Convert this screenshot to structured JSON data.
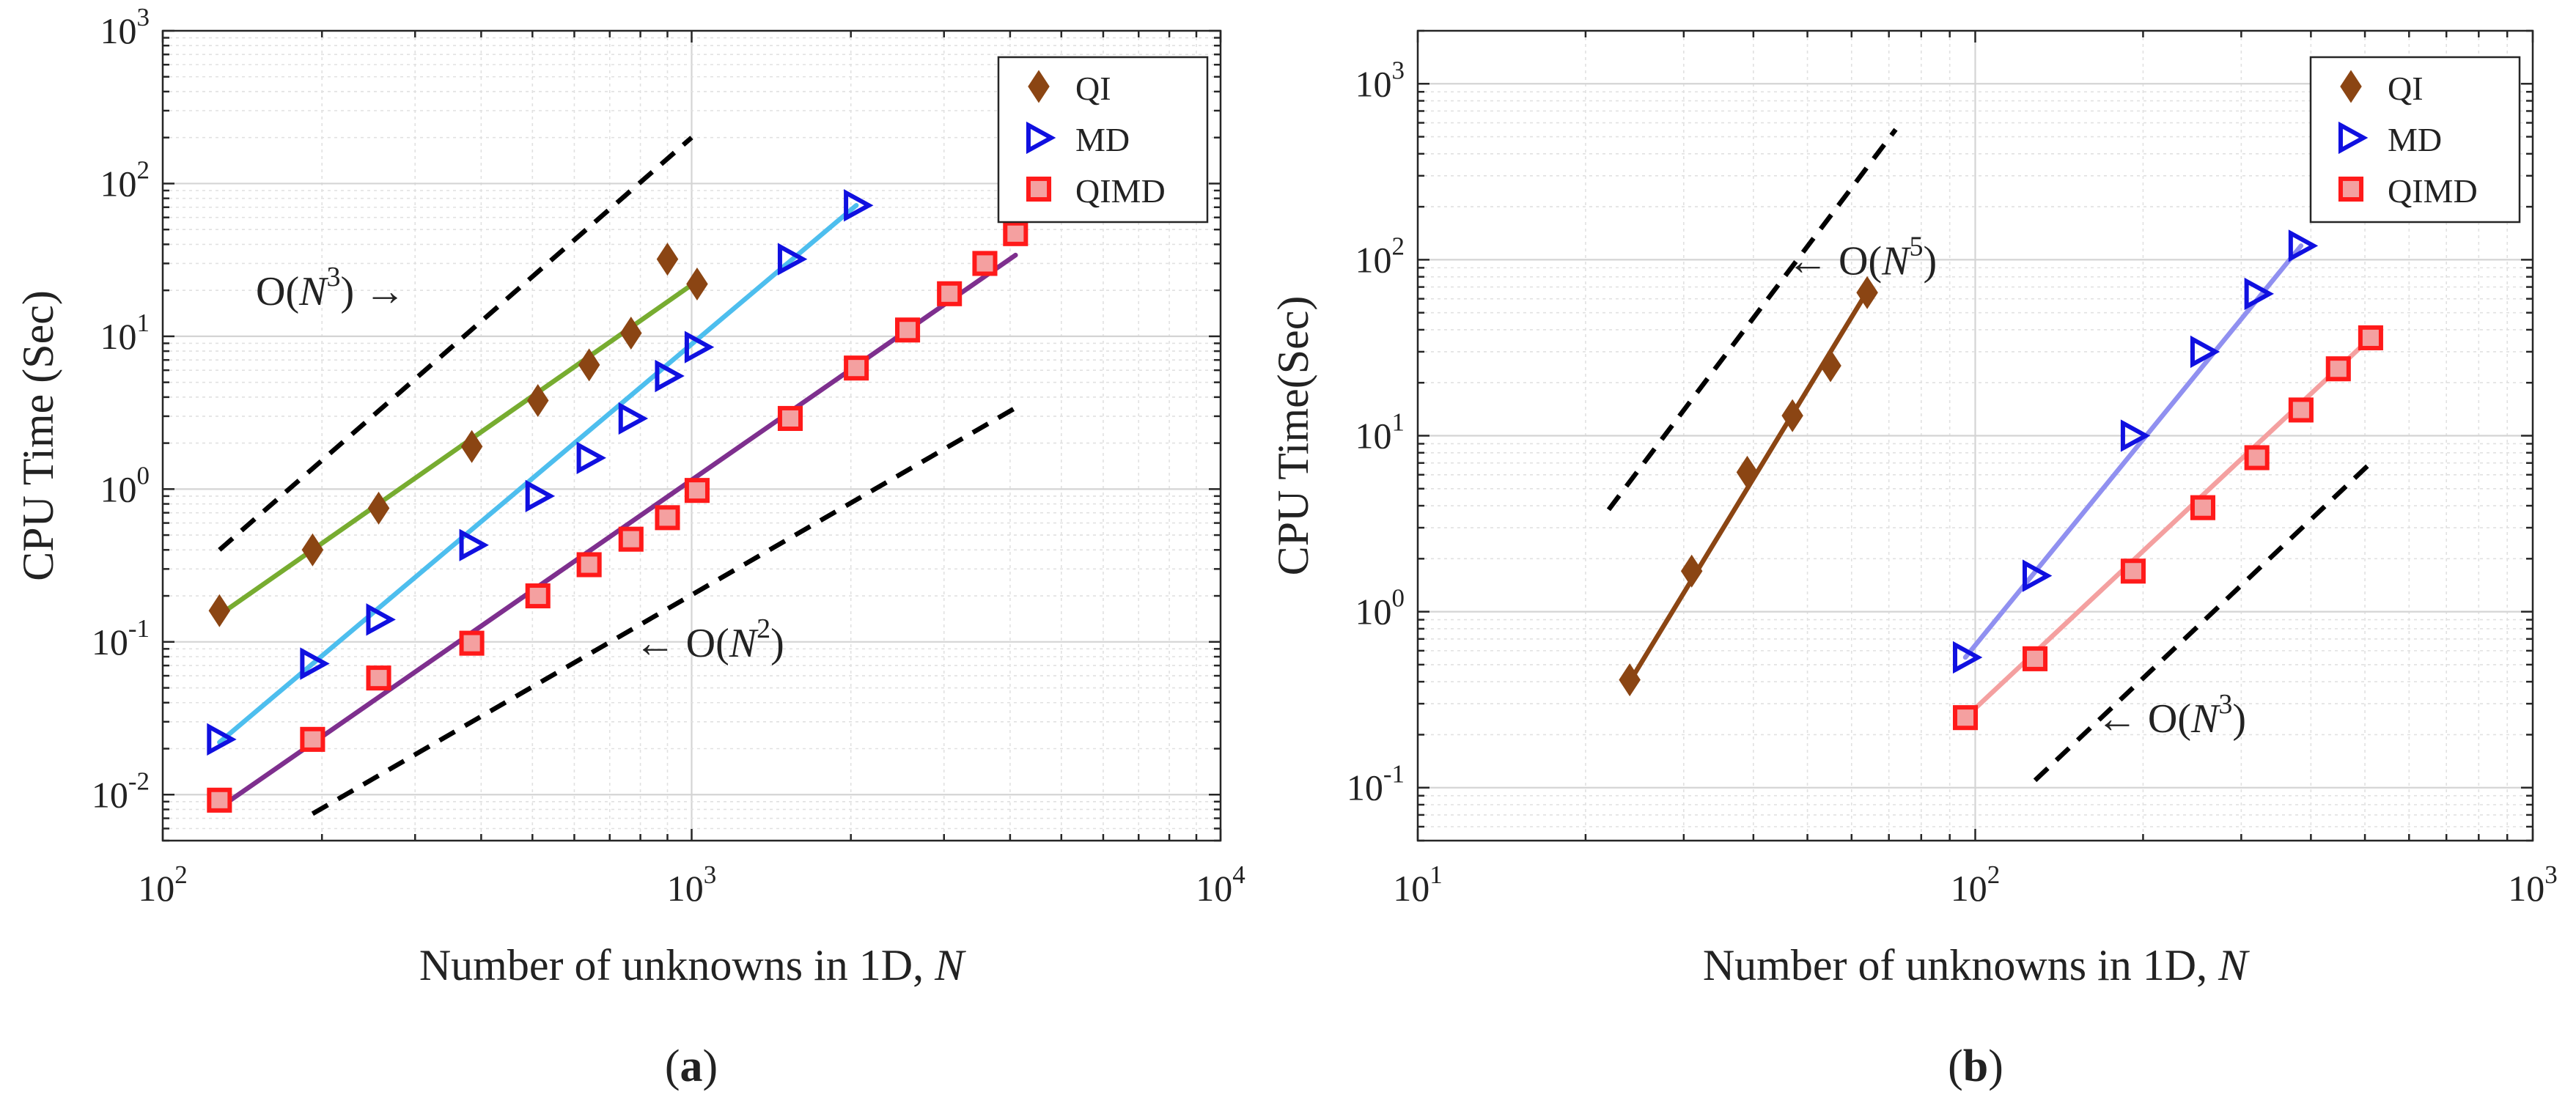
{
  "chart_data": [
    {
      "type": "scatter",
      "panel_label": "a",
      "caption_open": "(",
      "caption_close": ")",
      "xscale": "log",
      "yscale": "log",
      "xlim": [
        100,
        10000
      ],
      "ylim": [
        0.005,
        1000
      ],
      "grid": true,
      "xlabel": "Number of unknowns in 1D, ",
      "xlabel_var": "N",
      "ylabel": "CPU Time (Sec)",
      "x_tick_values": [
        100,
        1000,
        10000
      ],
      "x_tick_exponents": [
        "2",
        "3",
        "4"
      ],
      "y_tick_values": [
        0.01,
        0.1,
        1,
        10,
        100,
        1000
      ],
      "y_tick_exponents": [
        "-2",
        "-1",
        "0",
        "1",
        "2",
        "3"
      ],
      "tick_base": "10",
      "legend_position": "top-right",
      "series": [
        {
          "name": "QI",
          "marker": "diamond",
          "color": "#8B4513",
          "fit_color": "#77AC30",
          "x": [
            128,
            192,
            256,
            384,
            512,
            640,
            768,
            900,
            1024
          ],
          "y": [
            0.16,
            0.4,
            0.75,
            1.9,
            3.8,
            6.5,
            10.5,
            32,
            22
          ],
          "fit": {
            "x": [
              128,
              1024
            ],
            "y": [
              0.15,
              23
            ]
          }
        },
        {
          "name": "MD",
          "marker": "triangle-right",
          "color": "#1010E0",
          "fit_color": "#4DBEEE",
          "x": [
            128,
            192,
            256,
            384,
            512,
            640,
            768,
            900,
            1024,
            1536,
            2048
          ],
          "y": [
            0.023,
            0.072,
            0.14,
            0.43,
            0.9,
            1.6,
            2.9,
            5.5,
            8.5,
            32,
            72
          ],
          "fit": {
            "x": [
              128,
              2048
            ],
            "y": [
              0.022,
              72
            ]
          }
        },
        {
          "name": "QIMD",
          "marker": "square",
          "color": "#FF1A1A",
          "fit_color": "#7E2F8E",
          "x": [
            128,
            192,
            256,
            384,
            512,
            640,
            768,
            900,
            1024,
            1536,
            2048,
            2560,
            3072,
            3584,
            4096
          ],
          "y": [
            0.0092,
            0.023,
            0.058,
            0.098,
            0.2,
            0.32,
            0.47,
            0.65,
            0.98,
            2.9,
            6.2,
            11,
            19,
            30,
            47
          ],
          "fit": {
            "x": [
              128,
              4096
            ],
            "y": [
              0.0082,
              34
            ]
          }
        }
      ],
      "reference_lines": [
        {
          "x": [
            128,
            1000
          ],
          "y": [
            0.4,
            200
          ]
        },
        {
          "x": [
            192,
            4096
          ],
          "y": [
            0.0075,
            3.4
          ]
        }
      ],
      "annotations": [
        {
          "text_open": "O(",
          "var": "N",
          "exp": "3",
          "text_close": ") →",
          "x": 150,
          "y": 20
        },
        {
          "text_open": "← O(",
          "var": "N",
          "exp": "2",
          "text_close": ")",
          "x": 780,
          "y": 0.1
        }
      ]
    },
    {
      "type": "scatter",
      "panel_label": "b",
      "caption_open": "(",
      "caption_close": ")",
      "xscale": "log",
      "yscale": "log",
      "xlim": [
        10,
        1000
      ],
      "ylim": [
        0.05,
        2000
      ],
      "grid": true,
      "xlabel": "Number of unknowns in 1D, ",
      "xlabel_var": "N",
      "ylabel": "CPU Time(Sec)",
      "x_tick_values": [
        10,
        100,
        1000
      ],
      "x_tick_exponents": [
        "1",
        "2",
        "3"
      ],
      "y_tick_values": [
        0.1,
        1,
        10,
        100,
        1000
      ],
      "y_tick_exponents": [
        "-1",
        "0",
        "1",
        "2",
        "3"
      ],
      "tick_base": "10",
      "legend_position": "top-right",
      "series": [
        {
          "name": "QI",
          "marker": "diamond",
          "color": "#8B4513",
          "fit_color": "#8B4513",
          "x": [
            24,
            31,
            39,
            47,
            55,
            64
          ],
          "y": [
            0.41,
            1.7,
            6.2,
            13,
            25,
            65
          ],
          "fit": {
            "x": [
              24,
              64
            ],
            "y": [
              0.4,
              66
            ]
          }
        },
        {
          "name": "MD",
          "marker": "triangle-right",
          "color": "#1010E0",
          "fit_color": "#9090F0",
          "x": [
            96,
            128,
            192,
            256,
            320,
            384
          ],
          "y": [
            0.55,
            1.6,
            10,
            30,
            64,
            120
          ],
          "fit": {
            "x": [
              96,
              384
            ],
            "y": [
              0.55,
              120
            ]
          }
        },
        {
          "name": "QIMD",
          "marker": "square",
          "color": "#FF1A1A",
          "fit_color": "#F4A0A0",
          "x": [
            96,
            128,
            192,
            256,
            320,
            384,
            448,
            512
          ],
          "y": [
            0.25,
            0.54,
            1.7,
            3.9,
            7.5,
            14,
            24,
            36
          ],
          "fit": {
            "x": [
              96,
              512
            ],
            "y": [
              0.25,
              36
            ]
          }
        }
      ],
      "reference_lines": [
        {
          "x": [
            22,
            72
          ],
          "y": [
            3.8,
            550
          ]
        },
        {
          "x": [
            128,
            512
          ],
          "y": [
            0.11,
            7
          ]
        }
      ],
      "annotations": [
        {
          "text_open": "← O(",
          "var": "N",
          "exp": "5",
          "text_close": ")",
          "x": 46,
          "y": 100
        },
        {
          "text_open": "← O(",
          "var": "N",
          "exp": "3",
          "text_close": ")",
          "x": 165,
          "y": 0.25
        }
      ]
    }
  ]
}
